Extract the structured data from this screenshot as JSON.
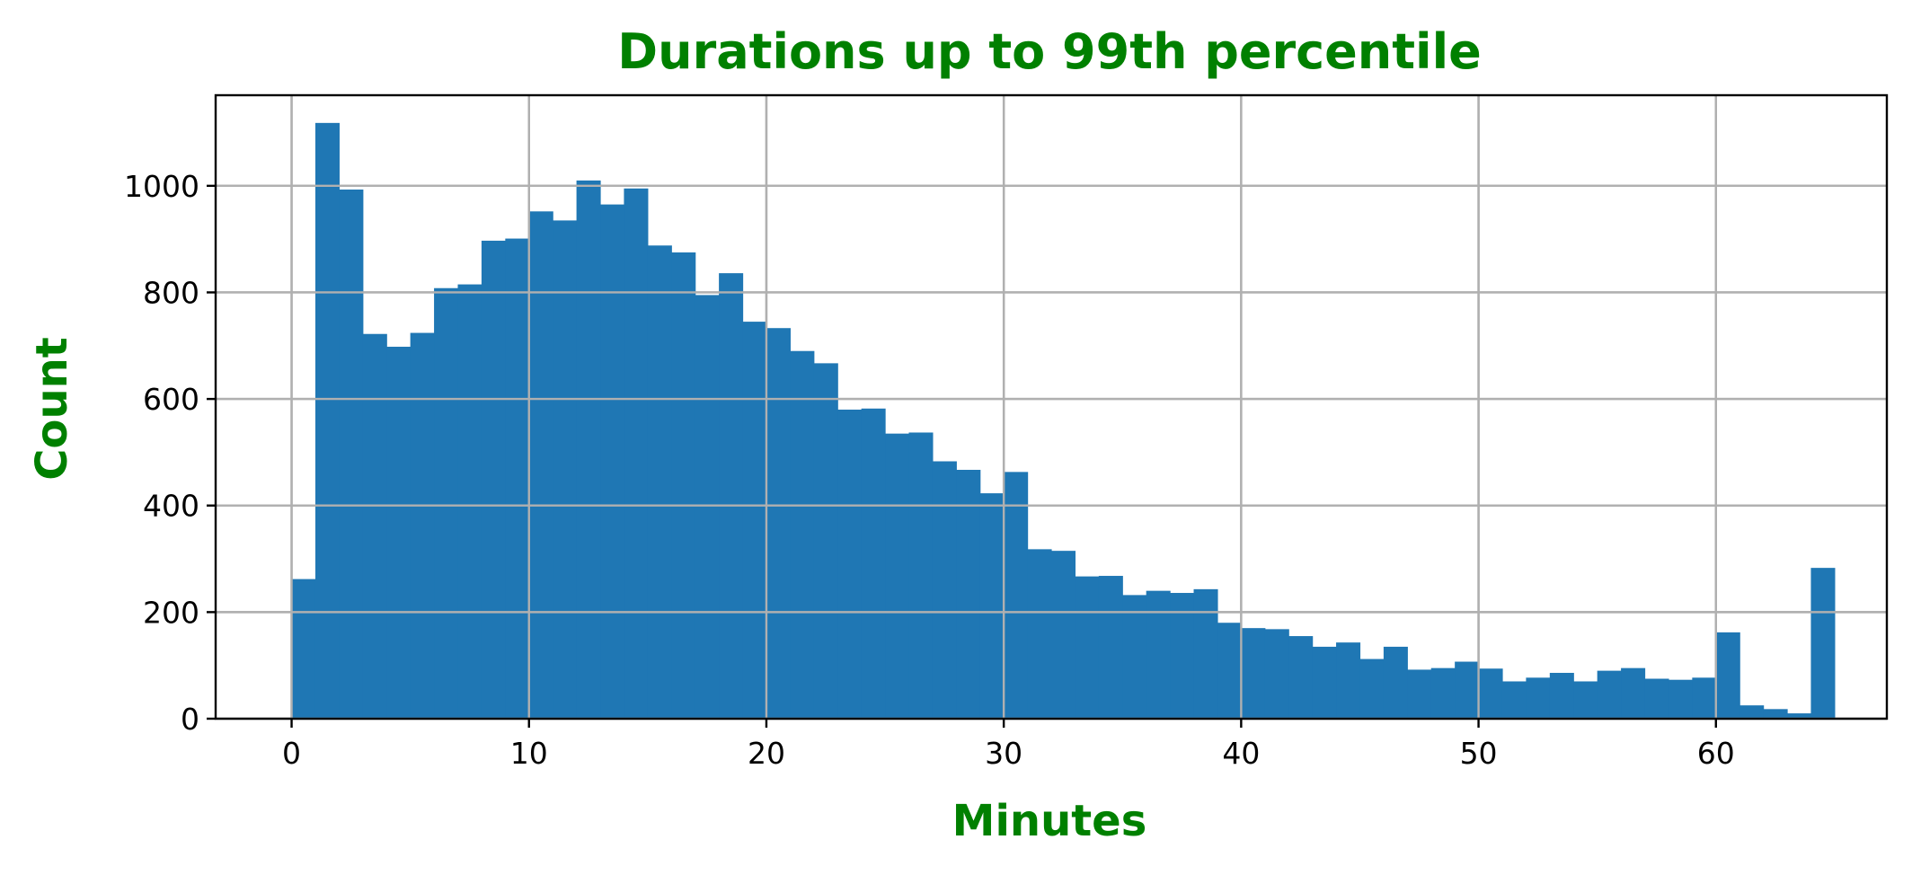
{
  "chart_data": {
    "type": "bar",
    "subtype": "histogram",
    "title": "Durations up to 99th percentile",
    "xlabel": "Minutes",
    "ylabel": "Count",
    "xlim": [
      -3.2,
      67.2
    ],
    "ylim": [
      0,
      1170
    ],
    "xticks": [
      0,
      10,
      20,
      30,
      40,
      50,
      60
    ],
    "yticks": [
      0,
      200,
      400,
      600,
      800,
      1000
    ],
    "grid": true,
    "legend": "none",
    "bin_start": 0,
    "bin_width": 1,
    "values": [
      262,
      1118,
      993,
      722,
      698,
      724,
      808,
      815,
      897,
      901,
      952,
      935,
      1010,
      965,
      995,
      888,
      875,
      795,
      836,
      745,
      733,
      690,
      667,
      580,
      582,
      535,
      537,
      483,
      467,
      423,
      463,
      318,
      315,
      267,
      268,
      232,
      240,
      236,
      243,
      180,
      170,
      168,
      155,
      135,
      143,
      112,
      135,
      92,
      95,
      107,
      94,
      70,
      77,
      86,
      70,
      90,
      95,
      75,
      73,
      77,
      162,
      25,
      18,
      10,
      283
    ],
    "colors": {
      "bar": "#1f77b4",
      "title": "#008000",
      "axis_label": "#008000",
      "grid": "#b0b0b0",
      "frame": "#000000",
      "tick_text": "#000000"
    }
  }
}
